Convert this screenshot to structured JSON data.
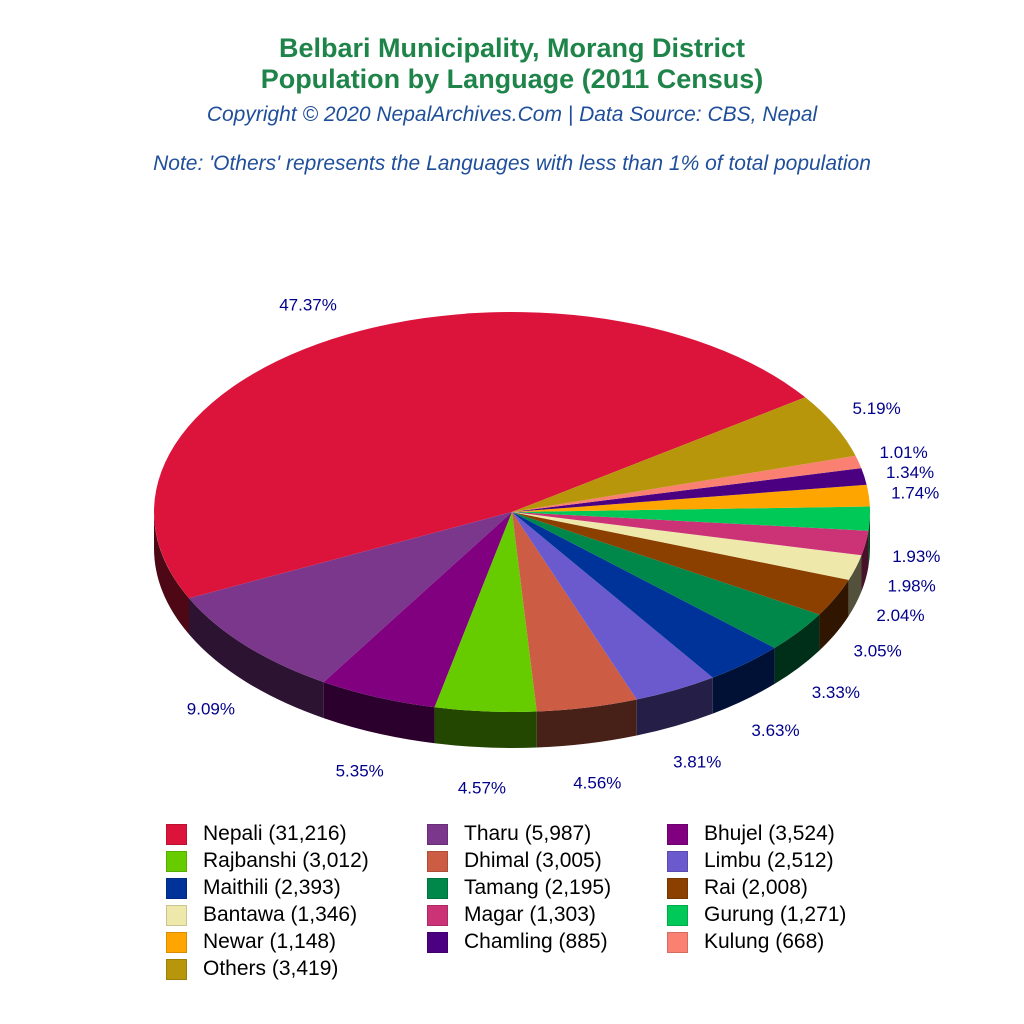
{
  "title_line1": "Belbari Municipality, Morang District",
  "title_line2": "Population by Language (2011 Census)",
  "copyright": "Copyright © 2020 NepalArchives.Com | Data Source: CBS, Nepal",
  "note": "Note: 'Others' represents the Languages with less than 1% of total population",
  "chart_data": {
    "type": "pie",
    "style": "3d",
    "legend_position": "bottom",
    "categories": [
      "Nepali",
      "Tharu",
      "Bhujel",
      "Rajbanshi",
      "Dhimal",
      "Limbu",
      "Maithili",
      "Tamang",
      "Rai",
      "Bantawa",
      "Magar",
      "Gurung",
      "Newar",
      "Chamling",
      "Kulung",
      "Others"
    ],
    "values": [
      31216,
      5987,
      3524,
      3012,
      3005,
      2512,
      2393,
      2195,
      2008,
      1346,
      1303,
      1271,
      1148,
      885,
      668,
      3419
    ],
    "legend_labels": [
      "Nepali (31,216)",
      "Tharu (5,987)",
      "Bhujel (3,524)",
      "Rajbanshi (3,012)",
      "Dhimal (3,005)",
      "Limbu (2,512)",
      "Maithili (2,393)",
      "Tamang (2,195)",
      "Rai (2,008)",
      "Bantawa (1,346)",
      "Magar (1,303)",
      "Gurung (1,271)",
      "Newar (1,148)",
      "Chamling (885)",
      "Kulung (668)",
      "Others (3,419)"
    ],
    "data_labels": [
      "47.37%",
      "9.09%",
      "5.35%",
      "4.57%",
      "4.56%",
      "3.81%",
      "3.63%",
      "3.33%",
      "3.05%",
      "2.04%",
      "1.98%",
      "1.93%",
      "1.74%",
      "1.34%",
      "1.01%",
      "5.19%"
    ],
    "colors": [
      "#DC143C",
      "#7B378C",
      "#800080",
      "#66CC00",
      "#CD5C45",
      "#6A5ACD",
      "#003399",
      "#00874A",
      "#8B4000",
      "#EEE8AA",
      "#CC3377",
      "#00C957",
      "#FFA500",
      "#4B0082",
      "#FA8072",
      "#B8960C"
    ]
  }
}
